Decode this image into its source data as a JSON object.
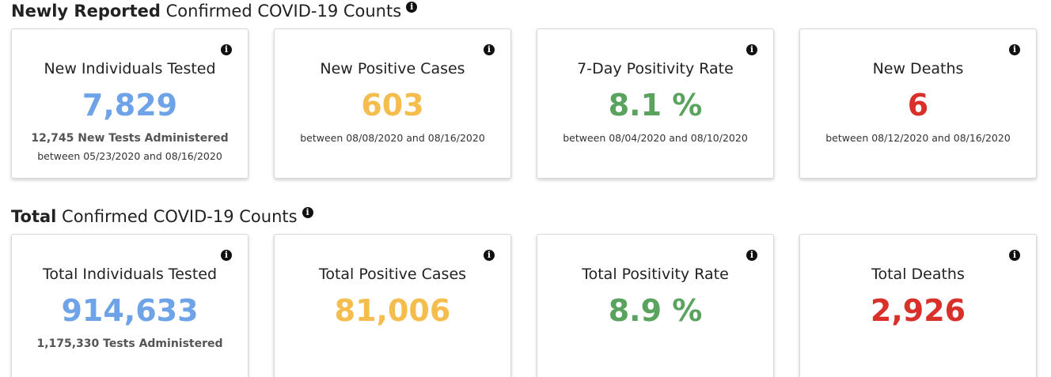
{
  "new_section": {
    "title_strong": "Newly Reported",
    "title_rest": " Confirmed COVID-19 Counts",
    "info_icon": "info-icon",
    "cards": [
      {
        "title": "New Individuals Tested",
        "value": "7,829",
        "sub": "12,745 New Tests Administered",
        "range": "between 05/23/2020 and 08/16/2020",
        "color": "#6fa3e8"
      },
      {
        "title": "New Positive Cases",
        "value": "603",
        "range": "between 08/08/2020 and 08/16/2020",
        "color": "#f4bd4e"
      },
      {
        "title": "7-Day Positivity Rate",
        "value": "8.1 %",
        "range": "between 08/04/2020 and 08/10/2020",
        "color": "#5aa35f"
      },
      {
        "title": "New Deaths",
        "value": "6",
        "range": "between 08/12/2020 and 08/16/2020",
        "color": "#d9302a"
      }
    ]
  },
  "total_section": {
    "title_strong": "Total",
    "title_rest": " Confirmed COVID-19 Counts",
    "info_icon": "info-icon",
    "cards": [
      {
        "title": "Total Individuals Tested",
        "value": "914,633",
        "sub": "1,175,330 Tests Administered",
        "color": "#6fa3e8"
      },
      {
        "title": "Total Positive Cases",
        "value": "81,006",
        "color": "#f4bd4e"
      },
      {
        "title": "Total Positivity Rate",
        "value": "8.9 %",
        "color": "#5aa35f"
      },
      {
        "title": "Total Deaths",
        "value": "2,926",
        "color": "#d9302a"
      }
    ]
  }
}
